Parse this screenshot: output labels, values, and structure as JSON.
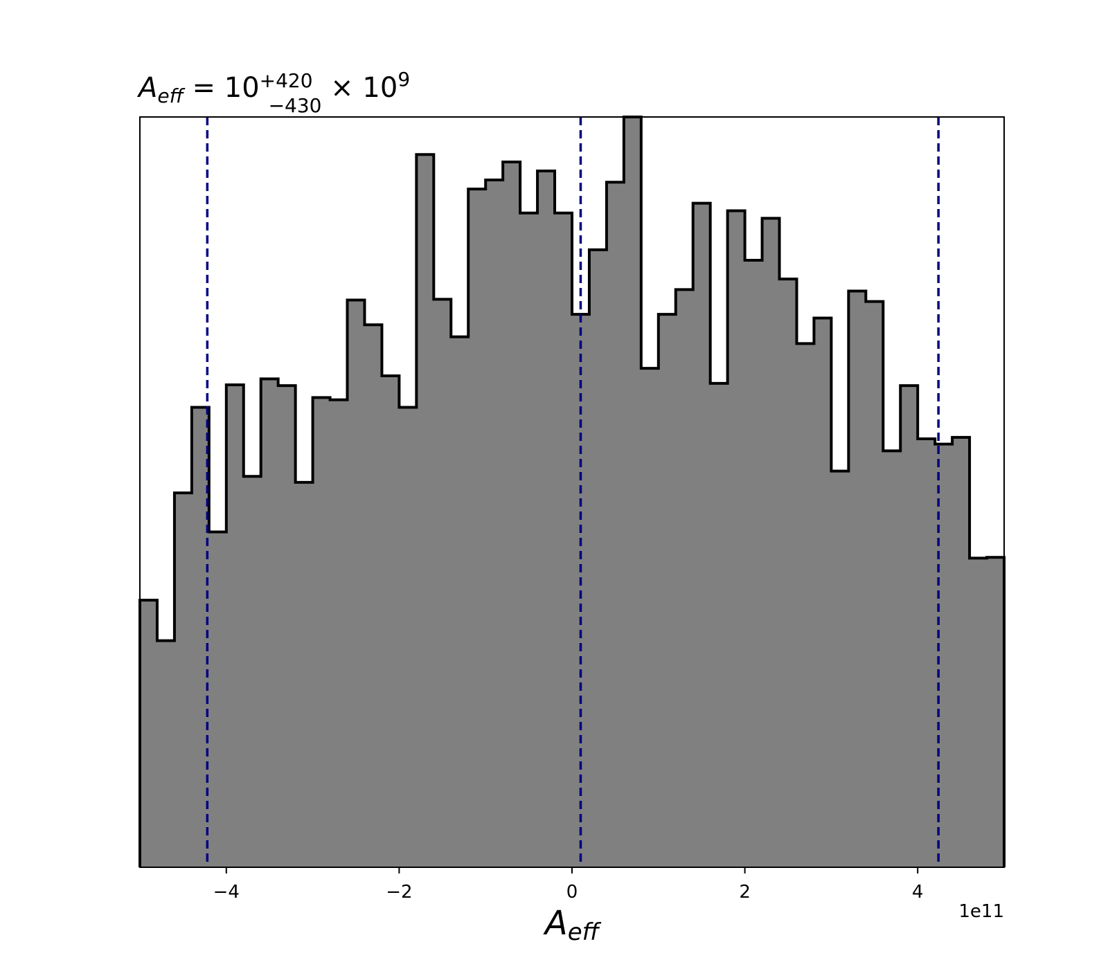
{
  "chart_data": {
    "type": "histogram",
    "title": {
      "symbol": "A",
      "symbol_sub": "eff",
      "equals": " = 10",
      "sup": "+420",
      "sub": "−430",
      "times": " × 10",
      "exp": "9"
    },
    "xlabel": {
      "symbol": "A",
      "sub": "eff"
    },
    "ylabel": "",
    "x_offset_label": "1e11",
    "xlim": [
      -5.0,
      5.0
    ],
    "x_scale": 100000000000.0,
    "xticks": [
      -4,
      -2,
      0,
      2,
      4
    ],
    "xtick_labels": [
      "−4",
      "−2",
      "0",
      "2",
      "4"
    ],
    "yticks_visible": false,
    "ylim": [
      0,
      1.0
    ],
    "bin_edges": [
      -5.0,
      -4.8,
      -4.6,
      -4.4,
      -4.2,
      -4.0,
      -3.8,
      -3.6,
      -3.4,
      -3.2,
      -3.0,
      -2.8,
      -2.6,
      -2.4,
      -2.2,
      -2.0,
      -1.8,
      -1.6,
      -1.4,
      -1.2,
      -1.0,
      -0.8,
      -0.6,
      -0.4,
      -0.2,
      0.0,
      0.2,
      0.4,
      0.6,
      0.8,
      1.0,
      1.2,
      1.4,
      1.6,
      1.8,
      2.0,
      2.2,
      2.4,
      2.6,
      2.8,
      3.0,
      3.2,
      3.4,
      3.6,
      3.8,
      4.0,
      4.2,
      4.4,
      4.6,
      4.8,
      5.0
    ],
    "counts": [
      0.356,
      0.302,
      0.499,
      0.613,
      0.447,
      0.643,
      0.521,
      0.651,
      0.642,
      0.513,
      0.626,
      0.623,
      0.756,
      0.723,
      0.655,
      0.613,
      0.95,
      0.757,
      0.707,
      0.904,
      0.916,
      0.94,
      0.872,
      0.928,
      0.872,
      0.737,
      0.823,
      0.913,
      1.0,
      0.665,
      0.737,
      0.77,
      0.885,
      0.645,
      0.875,
      0.809,
      0.865,
      0.784,
      0.698,
      0.732,
      0.528,
      0.768,
      0.754,
      0.555,
      0.642,
      0.571,
      0.564,
      0.573,
      0.412,
      0.413
    ],
    "fill_color": "#808080",
    "edge_color": "#000000",
    "quantile_lines": [
      -4.22,
      0.1,
      4.24
    ],
    "quantile_color": "#00007f",
    "grid": false
  }
}
